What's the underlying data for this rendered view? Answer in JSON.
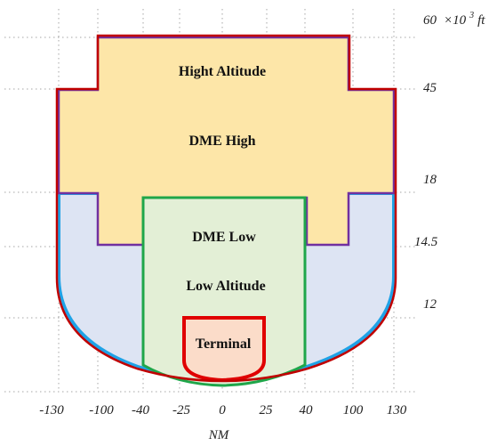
{
  "y_axis": {
    "unit_prefix": "×10",
    "unit_exp": "3",
    "unit_suffix": " ft",
    "ticks": [
      "60",
      "45",
      "18",
      "14.5",
      "12"
    ]
  },
  "x_axis": {
    "label": "NM",
    "ticks": [
      "-130",
      "-100",
      "-40",
      "-25",
      "0",
      "25",
      "40",
      "100",
      "130"
    ]
  },
  "regions": {
    "high_altitude": "Hight Altitude",
    "dme_high": "DME High",
    "dme_low": "DME Low",
    "low_altitude": "Low Altitude",
    "terminal": "Terminal"
  },
  "colors": {
    "high_fill": "#fde6a8",
    "low_fill": "#dde4f3",
    "dme_low_fill": "#e3efd6",
    "terminal_fill": "#fbdcc9",
    "outer_red": "#c00000",
    "purple": "#7030a0",
    "cyan": "#1fa2e6",
    "green": "#1fa64a",
    "terminal_red": "#e00000"
  }
}
